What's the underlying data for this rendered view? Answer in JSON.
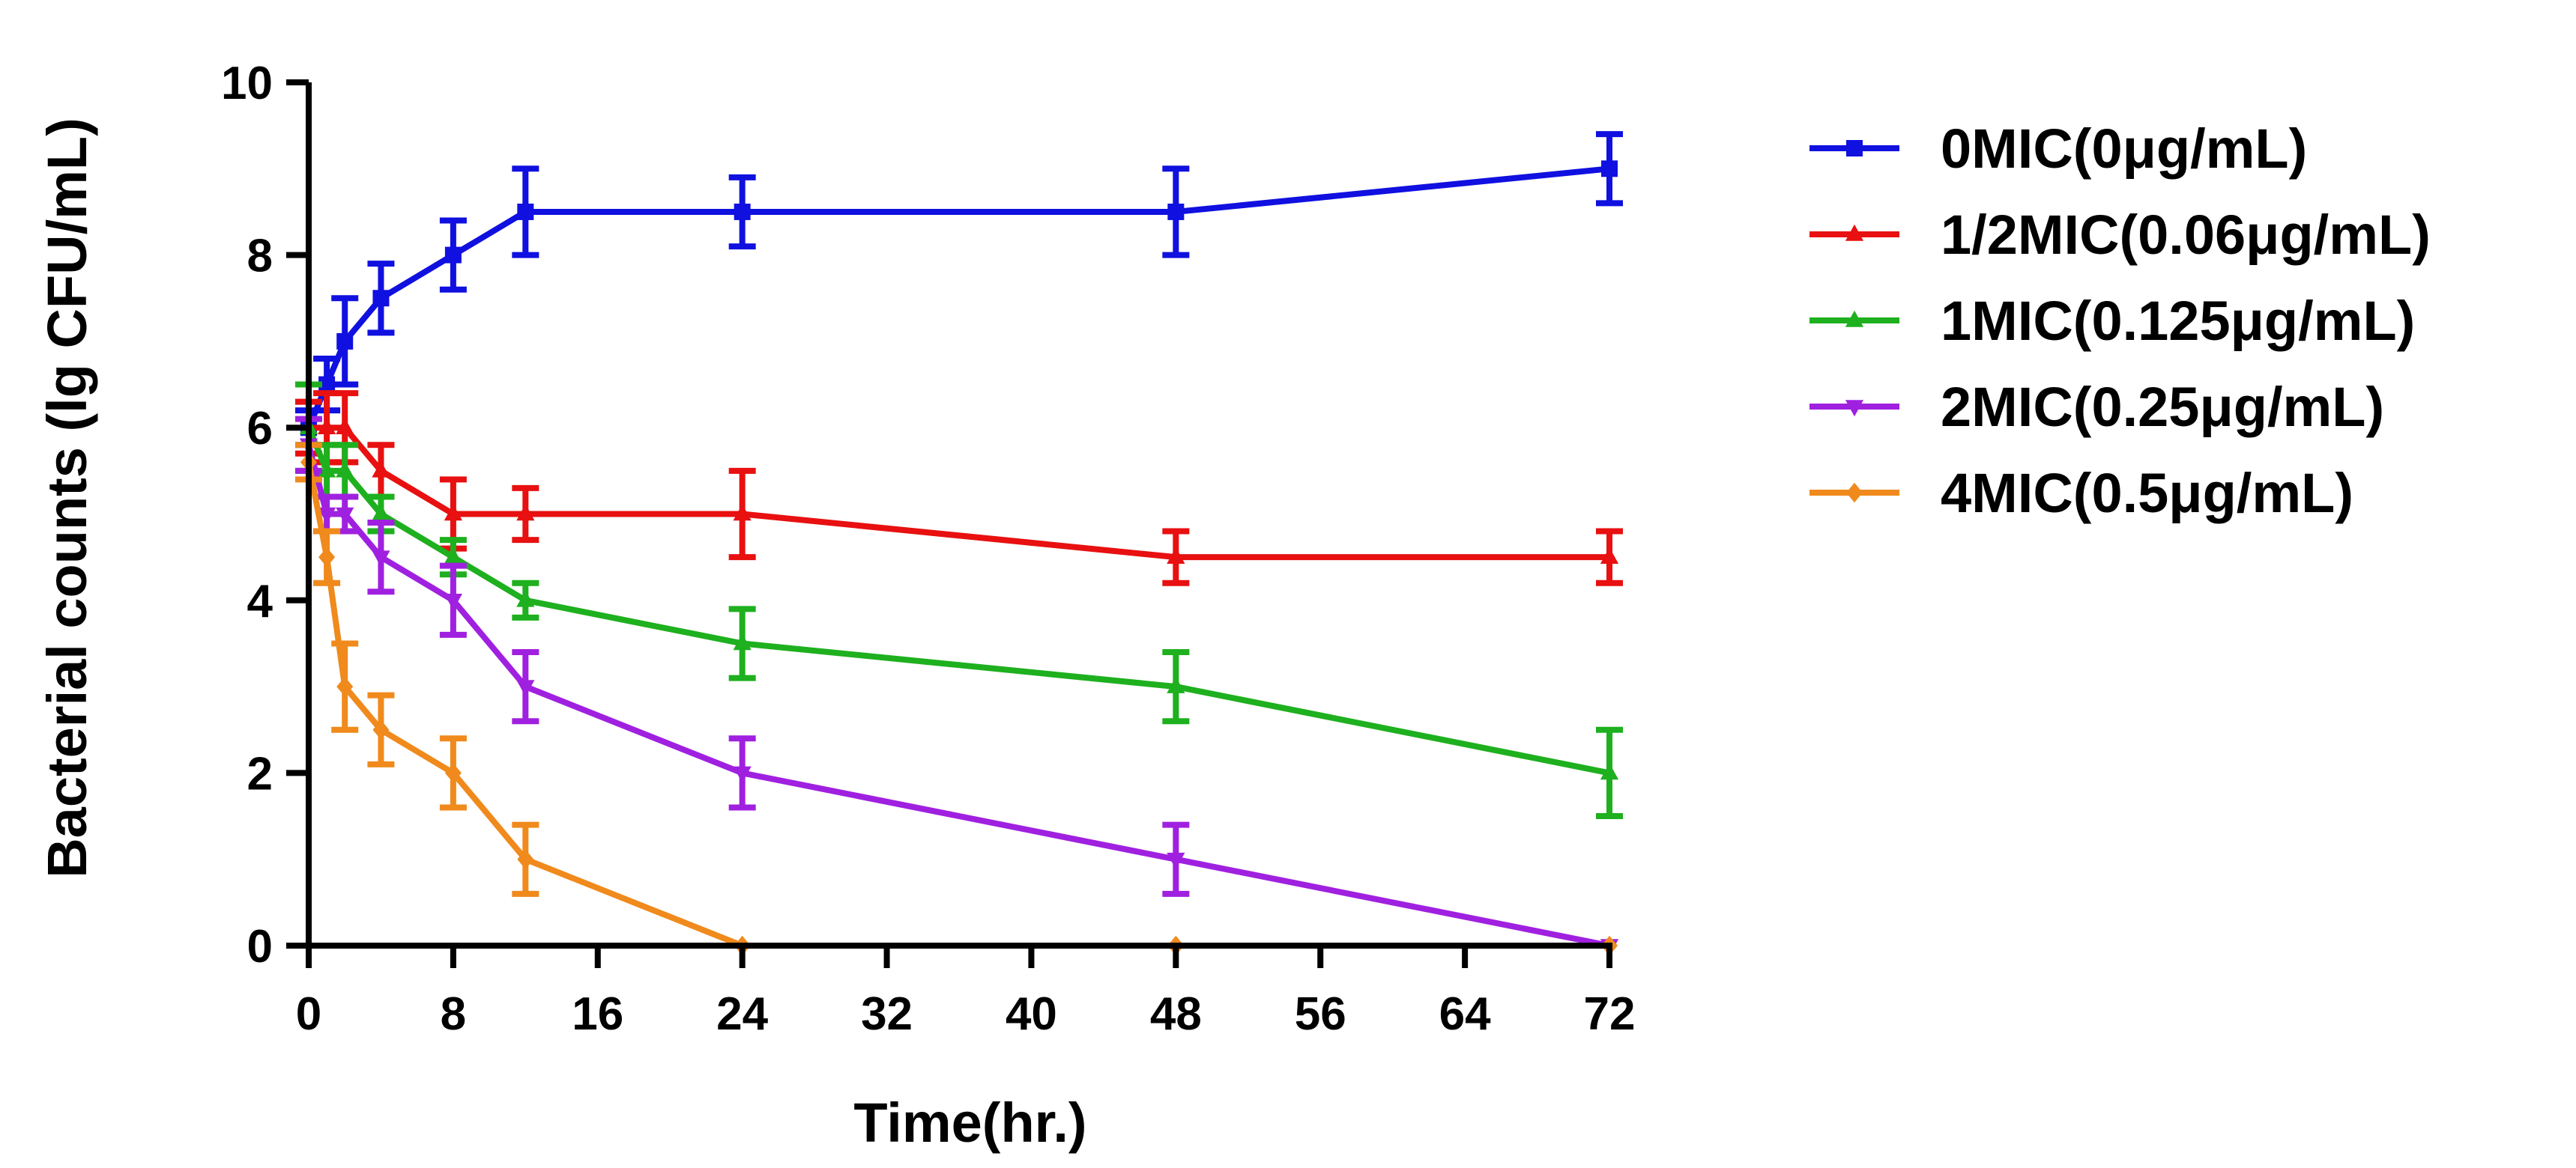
{
  "chart_data": {
    "type": "line",
    "title": "",
    "xlabel": "Time(hr.)",
    "ylabel": "Bacterial counts (lg CFU/mL)",
    "xlim": [
      0,
      72
    ],
    "ylim": [
      0,
      10
    ],
    "xticks": [
      0,
      8,
      16,
      24,
      32,
      40,
      48,
      56,
      64,
      72
    ],
    "yticks": [
      0,
      2,
      4,
      6,
      8,
      10
    ],
    "grid": false,
    "legend_position": "right",
    "series": [
      {
        "name": "0MIC(0μg/mL)",
        "color": "#1010e0",
        "marker": "square",
        "x": [
          0,
          1,
          2,
          4,
          8,
          12,
          24,
          48,
          72
        ],
        "y": [
          6.0,
          6.5,
          7.0,
          7.5,
          8.0,
          8.5,
          8.5,
          8.5,
          9.0
        ],
        "err": [
          0.2,
          0.3,
          0.5,
          0.4,
          0.4,
          0.5,
          0.4,
          0.5,
          0.4
        ]
      },
      {
        "name": "1/2MIC(0.06μg/mL)",
        "color": "#e81010",
        "marker": "triangle-up",
        "x": [
          0,
          1,
          2,
          4,
          8,
          12,
          24,
          48,
          72
        ],
        "y": [
          6.0,
          6.0,
          6.0,
          5.5,
          5.0,
          5.0,
          5.0,
          4.5,
          4.5
        ],
        "err": [
          0.3,
          0.4,
          0.4,
          0.3,
          0.4,
          0.3,
          0.5,
          0.3,
          0.3
        ]
      },
      {
        "name": "1MIC(0.125μg/mL)",
        "color": "#1eb01e",
        "marker": "triangle-up",
        "x": [
          0,
          1,
          2,
          4,
          8,
          12,
          24,
          48,
          72
        ],
        "y": [
          6.0,
          5.5,
          5.5,
          5.0,
          4.5,
          4.0,
          3.5,
          3.0,
          2.0
        ],
        "err": [
          0.5,
          0.3,
          0.3,
          0.2,
          0.2,
          0.2,
          0.4,
          0.4,
          0.5
        ]
      },
      {
        "name": "2MIC(0.25μg/mL)",
        "color": "#a020e0",
        "marker": "triangle-down",
        "x": [
          0,
          1,
          2,
          4,
          8,
          12,
          24,
          48,
          72
        ],
        "y": [
          5.8,
          5.0,
          5.0,
          4.5,
          4.0,
          3.0,
          2.0,
          1.0,
          0.0
        ],
        "err": [
          0.3,
          0.2,
          0.2,
          0.4,
          0.4,
          0.4,
          0.4,
          0.4,
          0.0
        ]
      },
      {
        "name": "4MIC(0.5μg/mL)",
        "color": "#f08a1c",
        "marker": "diamond",
        "x": [
          0,
          1,
          2,
          4,
          8,
          12,
          24,
          48,
          72
        ],
        "y": [
          5.6,
          4.5,
          3.0,
          2.5,
          2.0,
          1.0,
          0.0,
          0.0,
          0.0
        ],
        "err": [
          0.2,
          0.3,
          0.5,
          0.4,
          0.4,
          0.4,
          0.0,
          0.0,
          0.0
        ]
      }
    ]
  }
}
